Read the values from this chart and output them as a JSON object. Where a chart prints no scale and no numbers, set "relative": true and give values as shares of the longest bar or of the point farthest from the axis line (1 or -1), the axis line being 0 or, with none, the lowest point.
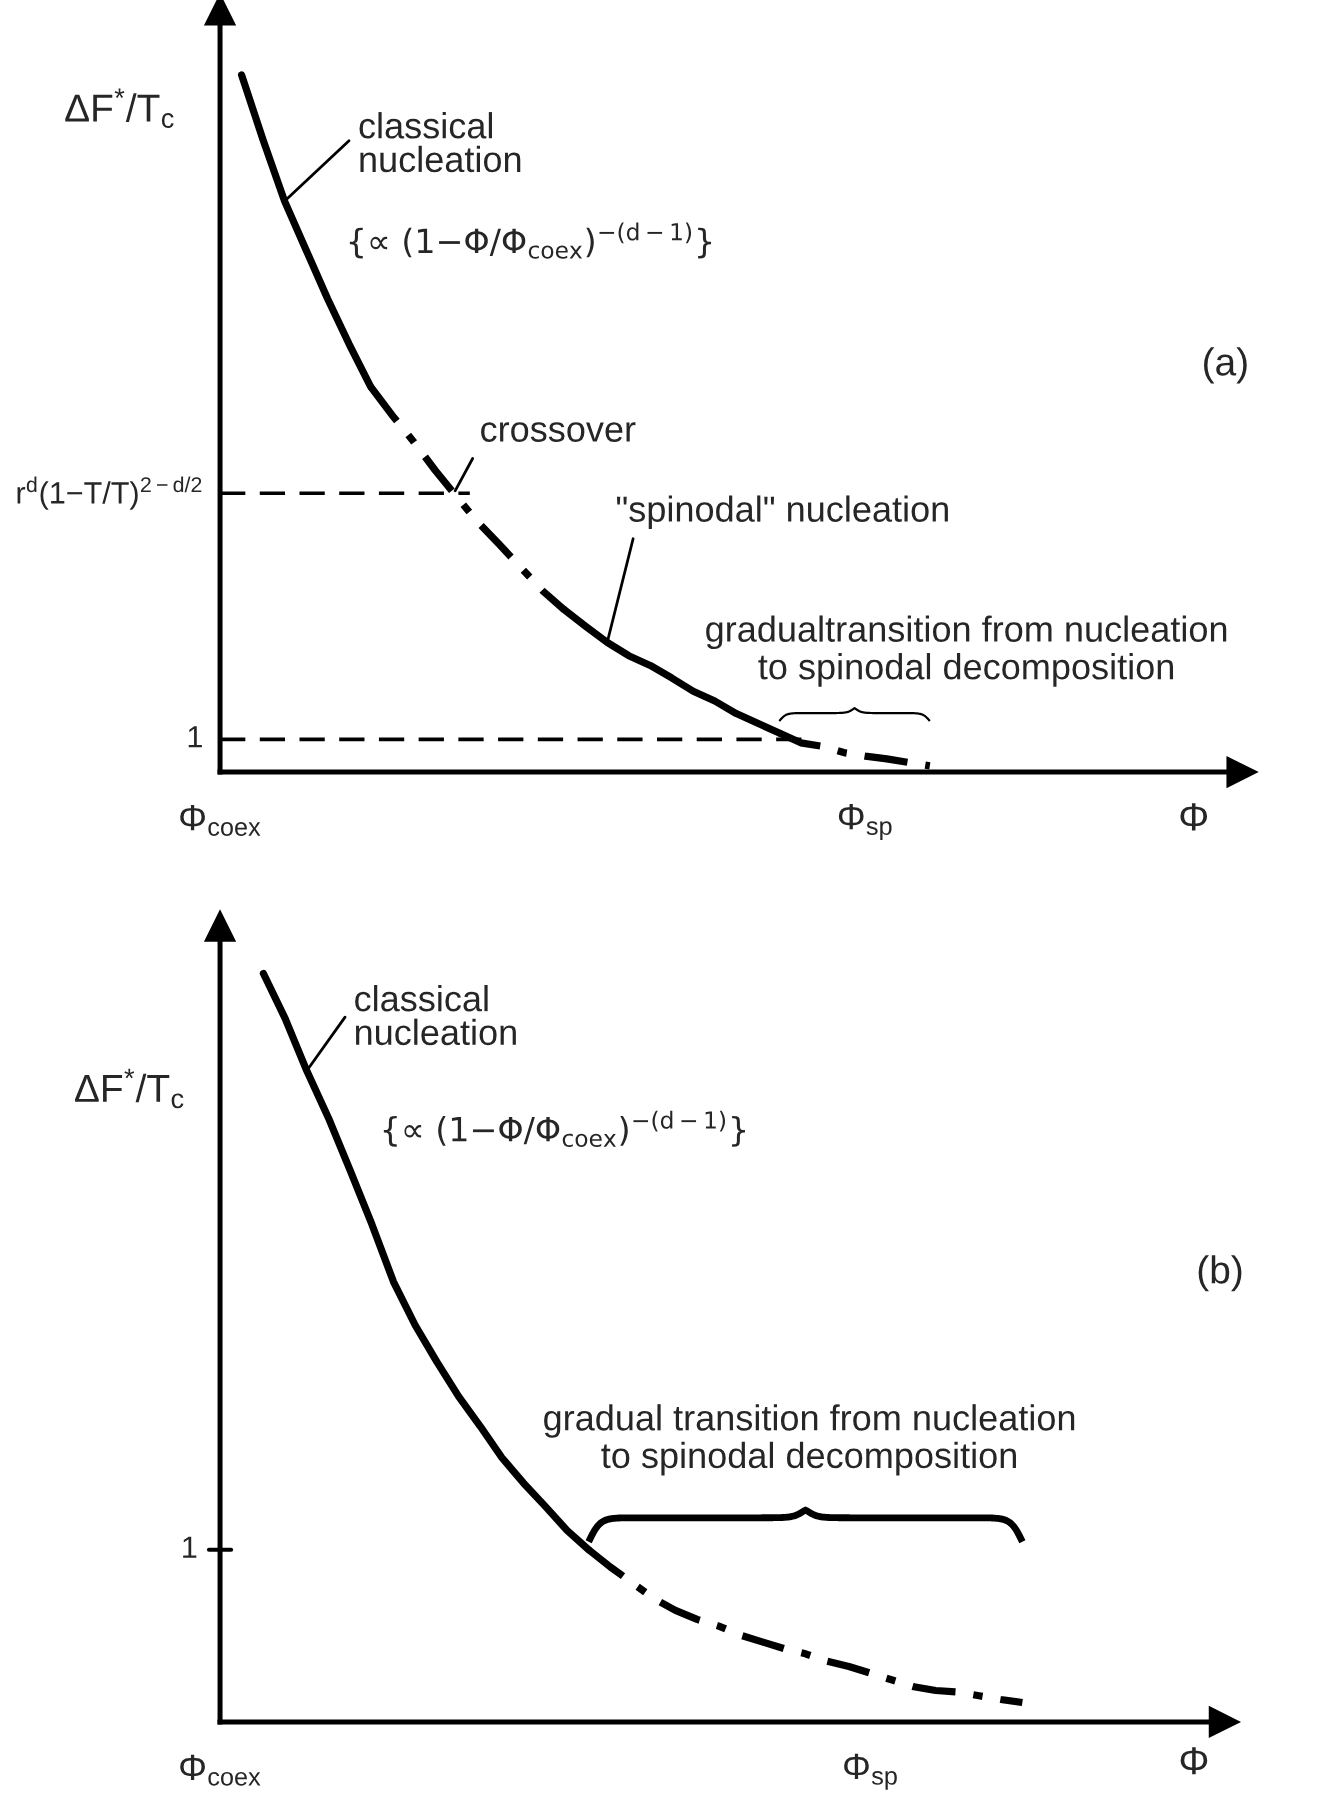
{
  "chart_data": [
    {
      "type": "line",
      "title": "(a)",
      "xlabel": "Φ",
      "ylabel": "ΔF$^{*}$/T$_{c}$",
      "relative": true,
      "categories": [
        "Φ$_{coex}$",
        null,
        null,
        null,
        null,
        null,
        null,
        null,
        null,
        null,
        null,
        null,
        null,
        null,
        null,
        null,
        null,
        null,
        null,
        null,
        null,
        null,
        null,
        null,
        null,
        null,
        null,
        null,
        null,
        null,
        "Φ$_{sp}$",
        null,
        null,
        null,
        null,
        null,
        null,
        null,
        null,
        null,
        null,
        null,
        null,
        null,
        null,
        null,
        null,
        null
      ],
      "series": [
        {
          "color": "#000000",
          "line_style": "solid",
          "values": [
            null,
            1.0,
            0.907,
            0.819,
            0.749,
            0.679,
            0.614,
            0.553,
            null,
            null,
            null,
            null,
            null,
            null,
            null,
            null,
            null,
            null,
            null,
            null,
            null,
            null,
            null,
            null,
            null,
            null,
            null,
            null,
            null,
            null,
            null,
            null,
            null,
            null,
            null,
            null,
            null,
            null,
            null,
            null,
            null,
            null,
            null,
            null,
            null,
            null,
            null,
            null
          ]
        },
        {
          "color": "#000000",
          "line_style": "dashed",
          "values": [
            null,
            null,
            null,
            null,
            null,
            null,
            null,
            0.553,
            0.512,
            0.474,
            0.433,
            0.395,
            0.358,
            0.326,
            0.293,
            0.26,
            0.233,
            null,
            null,
            null,
            null,
            null,
            null,
            null,
            null,
            null,
            null,
            null,
            null,
            null,
            null,
            null,
            null,
            null,
            null,
            null,
            null,
            null,
            null,
            null,
            null,
            null,
            null,
            null,
            null,
            null,
            null,
            null
          ]
        },
        {
          "color": "#000000",
          "line_style": "solid",
          "values": [
            null,
            null,
            null,
            null,
            null,
            null,
            null,
            null,
            null,
            null,
            null,
            null,
            null,
            null,
            null,
            null,
            0.233,
            0.209,
            0.186,
            0.167,
            0.153,
            0.135,
            0.116,
            0.102,
            0.084,
            0.07,
            0.056,
            null,
            null,
            null,
            null,
            null,
            null,
            null,
            null,
            null,
            null,
            null,
            null,
            null,
            null,
            null,
            null,
            null,
            null,
            null,
            null,
            null
          ]
        },
        {
          "color": "#000000",
          "line_style": "dashed",
          "values": [
            null,
            null,
            null,
            null,
            null,
            null,
            null,
            null,
            null,
            null,
            null,
            null,
            null,
            null,
            null,
            null,
            null,
            null,
            null,
            null,
            null,
            null,
            null,
            null,
            null,
            null,
            0.056,
            0.042,
            0.037,
            0.028,
            0.023,
            0.019,
            0.014,
            0.009,
            null,
            null,
            null,
            null,
            null,
            null,
            null,
            null,
            null,
            null,
            null,
            null,
            null,
            null
          ]
        }
      ],
      "ref_lines": [
        {
          "axis": "y",
          "value": 0.4,
          "line_style": "dashed"
        },
        {
          "axis": "y",
          "value": 0.047,
          "line_style": "dashed"
        }
      ],
      "annotations": [
        "classical\nnucleation",
        "{∝ (1−Φ/Φ$_{coex}$)$^{−(d−1)}$}",
        "crossover",
        "\"spinodal\" nucleation",
        "gradualtransition from nucleation\nto spinodal decomposition",
        "r$^{d}$(1−T/T)$^{2−d/2}$",
        "1"
      ]
    },
    {
      "type": "line",
      "title": "(b)",
      "xlabel": "Φ",
      "ylabel": "ΔF$^{*}$/T$_{c}$",
      "relative": true,
      "categories": [
        "Φ$_{coex}$",
        null,
        null,
        null,
        null,
        null,
        null,
        null,
        null,
        null,
        null,
        null,
        null,
        null,
        null,
        null,
        null,
        null,
        null,
        null,
        null,
        null,
        null,
        null,
        null,
        null,
        null,
        null,
        null,
        null,
        "Φ$_{sp}$",
        null,
        null,
        null,
        null,
        null,
        null,
        null,
        null,
        null,
        null,
        null,
        null,
        null,
        null,
        null,
        null
      ],
      "series": [
        {
          "color": "#000000",
          "line_style": "solid",
          "values": [
            null,
            null,
            1.0,
            0.94,
            0.87,
            0.807,
            0.737,
            0.665,
            0.588,
            0.53,
            0.481,
            0.435,
            0.395,
            0.353,
            0.319,
            0.288,
            0.256,
            0.23,
            null,
            null,
            null,
            null,
            null,
            null,
            null,
            null,
            null,
            null,
            null,
            null,
            null,
            null,
            null,
            null,
            null,
            null,
            null,
            null,
            null,
            null,
            null,
            null,
            null,
            null,
            null,
            null,
            null
          ]
        },
        {
          "color": "#000000",
          "line_style": "dashed",
          "values": [
            null,
            null,
            null,
            null,
            null,
            null,
            null,
            null,
            null,
            null,
            null,
            null,
            null,
            null,
            null,
            null,
            null,
            0.23,
            0.207,
            0.186,
            0.165,
            0.149,
            0.137,
            0.128,
            0.116,
            0.107,
            0.098,
            0.091,
            0.081,
            0.074,
            0.065,
            0.056,
            0.047,
            0.042,
            0.04,
            0.035,
            0.03,
            0.026,
            null,
            null,
            null,
            null,
            null,
            null,
            null,
            null,
            null
          ]
        }
      ],
      "annotations": [
        "classical\nnucleation",
        "{∝ (1−Φ/Φ$_{coex}$)$^{−(d−1)}$}",
        "gradual transition from nucleation\nto spinodal decomposition",
        "1"
      ]
    }
  ]
}
